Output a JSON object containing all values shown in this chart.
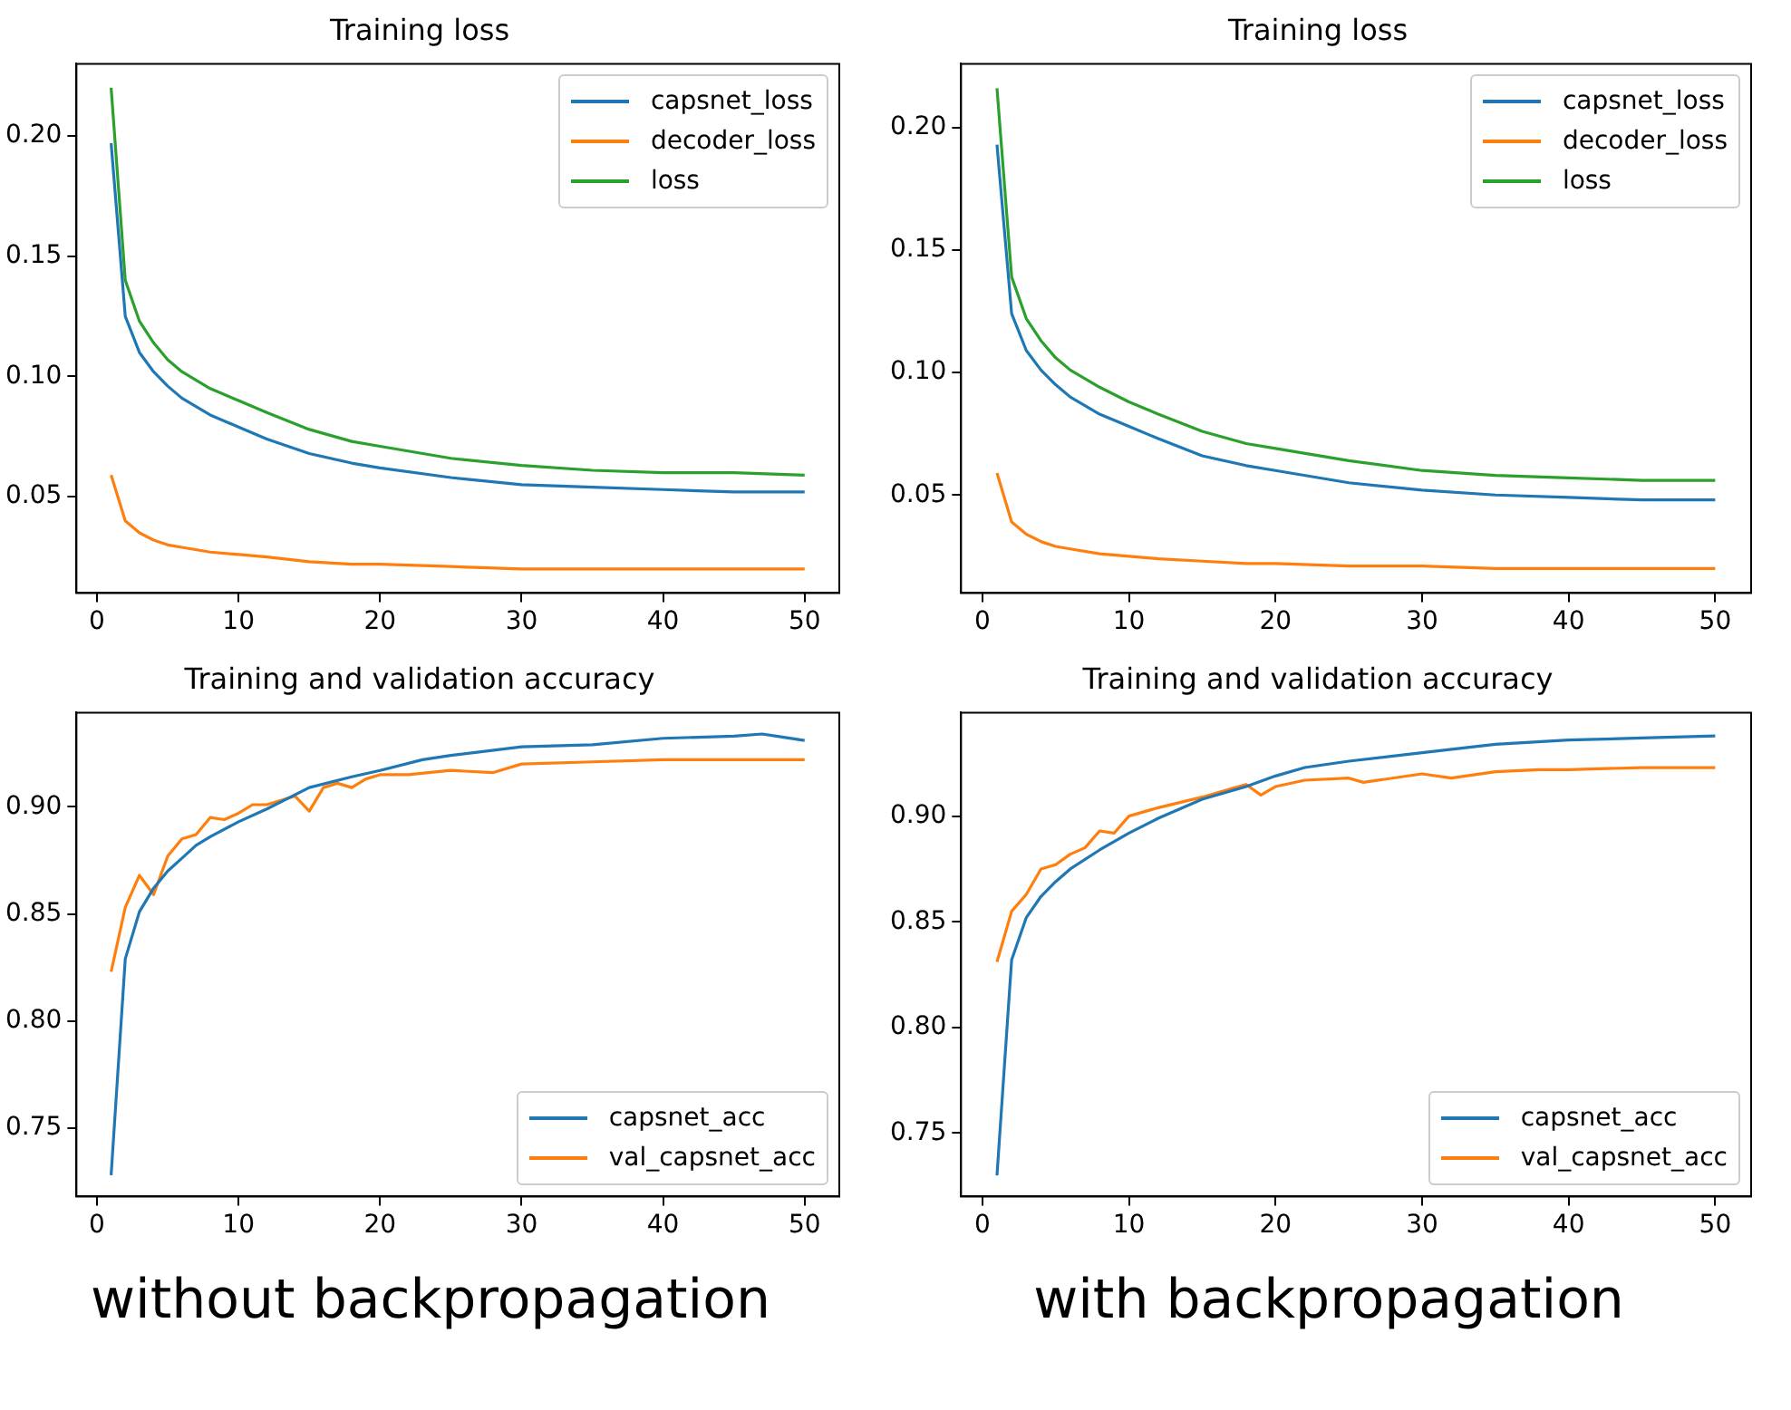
{
  "chart_data": [
    {
      "type": "line",
      "title": "Training loss",
      "x": [
        1,
        2,
        3,
        4,
        5,
        6,
        8,
        10,
        12,
        15,
        18,
        20,
        25,
        30,
        35,
        40,
        45,
        50
      ],
      "xlim": [
        -1.45,
        52.45
      ],
      "xticks": [
        0,
        10,
        20,
        30,
        40,
        50
      ],
      "ylim": [
        0.01,
        0.23
      ],
      "yticks": [
        {
          "value": 0.05,
          "label": "0.05"
        },
        {
          "value": 0.1,
          "label": "0.10"
        },
        {
          "value": 0.15,
          "label": "0.15"
        },
        {
          "value": 0.2,
          "label": "0.20"
        }
      ],
      "grid": false,
      "legend": "top right",
      "series": [
        {
          "name": "capsnet_loss",
          "color": "#1f77b4",
          "values": [
            0.197,
            0.125,
            0.11,
            0.102,
            0.096,
            0.091,
            0.084,
            0.079,
            0.074,
            0.068,
            0.064,
            0.062,
            0.058,
            0.055,
            0.054,
            0.053,
            0.052,
            0.052
          ]
        },
        {
          "name": "decoder_loss",
          "color": "#ff7f0e",
          "values": [
            0.059,
            0.04,
            0.035,
            0.032,
            0.03,
            0.029,
            0.027,
            0.026,
            0.025,
            0.023,
            0.022,
            0.022,
            0.021,
            0.02,
            0.02,
            0.02,
            0.02,
            0.02
          ]
        },
        {
          "name": "loss",
          "color": "#2ca02c",
          "values": [
            0.22,
            0.14,
            0.123,
            0.114,
            0.107,
            0.102,
            0.095,
            0.09,
            0.085,
            0.078,
            0.073,
            0.071,
            0.066,
            0.063,
            0.061,
            0.06,
            0.06,
            0.059
          ]
        }
      ]
    },
    {
      "type": "line",
      "title": "Training loss",
      "x": [
        1,
        2,
        3,
        4,
        5,
        6,
        8,
        10,
        12,
        15,
        18,
        20,
        25,
        30,
        35,
        40,
        45,
        50
      ],
      "xlim": [
        -1.45,
        52.45
      ],
      "xticks": [
        0,
        10,
        20,
        30,
        40,
        50
      ],
      "ylim": [
        0.01,
        0.226
      ],
      "yticks": [
        {
          "value": 0.05,
          "label": "0.05"
        },
        {
          "value": 0.1,
          "label": "0.10"
        },
        {
          "value": 0.15,
          "label": "0.15"
        },
        {
          "value": 0.2,
          "label": "0.20"
        }
      ],
      "grid": false,
      "legend": "top right",
      "series": [
        {
          "name": "capsnet_loss",
          "color": "#1f77b4",
          "values": [
            0.193,
            0.124,
            0.109,
            0.101,
            0.095,
            0.09,
            0.083,
            0.078,
            0.073,
            0.066,
            0.062,
            0.06,
            0.055,
            0.052,
            0.05,
            0.049,
            0.048,
            0.048
          ]
        },
        {
          "name": "decoder_loss",
          "color": "#ff7f0e",
          "values": [
            0.059,
            0.039,
            0.034,
            0.031,
            0.029,
            0.028,
            0.026,
            0.025,
            0.024,
            0.023,
            0.022,
            0.022,
            0.021,
            0.021,
            0.02,
            0.02,
            0.02,
            0.02
          ]
        },
        {
          "name": "loss",
          "color": "#2ca02c",
          "values": [
            0.216,
            0.139,
            0.122,
            0.113,
            0.106,
            0.101,
            0.094,
            0.088,
            0.083,
            0.076,
            0.071,
            0.069,
            0.064,
            0.06,
            0.058,
            0.057,
            0.056,
            0.056
          ]
        }
      ]
    },
    {
      "type": "line",
      "title": "Training and validation accuracy",
      "xlim": [
        -1.45,
        52.45
      ],
      "xticks": [
        0,
        10,
        20,
        30,
        40,
        50
      ],
      "ylim": [
        0.718,
        0.944
      ],
      "yticks": [
        {
          "value": 0.75,
          "label": "0.75"
        },
        {
          "value": 0.8,
          "label": "0.80"
        },
        {
          "value": 0.85,
          "label": "0.85"
        },
        {
          "value": 0.9,
          "label": "0.90"
        }
      ],
      "grid": false,
      "legend": "bottom right",
      "annotations": [
        "without backpropagation"
      ],
      "series": [
        {
          "name": "capsnet_acc",
          "color": "#1f77b4",
          "x": [
            1,
            2,
            3,
            4,
            5,
            6,
            7,
            8,
            10,
            12,
            15,
            18,
            20,
            23,
            25,
            30,
            35,
            40,
            45,
            47,
            48,
            50
          ],
          "values": [
            0.728,
            0.829,
            0.851,
            0.862,
            0.87,
            0.876,
            0.882,
            0.886,
            0.893,
            0.899,
            0.909,
            0.914,
            0.917,
            0.922,
            0.924,
            0.928,
            0.929,
            0.932,
            0.933,
            0.934,
            0.933,
            0.931
          ]
        },
        {
          "name": "val_capsnet_acc",
          "color": "#ff7f0e",
          "x": [
            1,
            2,
            3,
            4,
            5,
            6,
            7,
            8,
            9,
            10,
            11,
            12,
            13,
            14,
            15,
            16,
            17,
            18,
            19,
            20,
            22,
            25,
            28,
            30,
            35,
            40,
            45,
            50
          ],
          "values": [
            0.823,
            0.853,
            0.868,
            0.859,
            0.877,
            0.885,
            0.887,
            0.895,
            0.894,
            0.897,
            0.901,
            0.901,
            0.903,
            0.905,
            0.898,
            0.909,
            0.911,
            0.909,
            0.913,
            0.915,
            0.915,
            0.917,
            0.916,
            0.92,
            0.921,
            0.922,
            0.922,
            0.922
          ]
        }
      ]
    },
    {
      "type": "line",
      "title": "Training and validation accuracy",
      "xlim": [
        -1.45,
        52.45
      ],
      "xticks": [
        0,
        10,
        20,
        30,
        40,
        50
      ],
      "ylim": [
        0.72,
        0.949
      ],
      "yticks": [
        {
          "value": 0.75,
          "label": "0.75"
        },
        {
          "value": 0.8,
          "label": "0.80"
        },
        {
          "value": 0.85,
          "label": "0.85"
        },
        {
          "value": 0.9,
          "label": "0.90"
        }
      ],
      "grid": false,
      "legend": "bottom right",
      "annotations": [
        "with backpropagation"
      ],
      "series": [
        {
          "name": "capsnet_acc",
          "color": "#1f77b4",
          "x": [
            1,
            2,
            3,
            4,
            5,
            6,
            8,
            10,
            12,
            15,
            18,
            20,
            22,
            25,
            30,
            35,
            40,
            45,
            50
          ],
          "values": [
            0.73,
            0.832,
            0.852,
            0.862,
            0.869,
            0.875,
            0.884,
            0.892,
            0.899,
            0.908,
            0.914,
            0.919,
            0.923,
            0.926,
            0.93,
            0.934,
            0.936,
            0.937,
            0.938
          ]
        },
        {
          "name": "val_capsnet_acc",
          "color": "#ff7f0e",
          "x": [
            1,
            2,
            3,
            4,
            5,
            6,
            7,
            8,
            9,
            10,
            12,
            15,
            17,
            18,
            19,
            20,
            22,
            25,
            26,
            30,
            32,
            35,
            38,
            40,
            45,
            50
          ],
          "values": [
            0.831,
            0.855,
            0.863,
            0.875,
            0.877,
            0.882,
            0.885,
            0.893,
            0.892,
            0.9,
            0.904,
            0.909,
            0.913,
            0.915,
            0.91,
            0.914,
            0.917,
            0.918,
            0.916,
            0.92,
            0.918,
            0.921,
            0.922,
            0.922,
            0.923,
            0.923
          ]
        }
      ]
    }
  ]
}
